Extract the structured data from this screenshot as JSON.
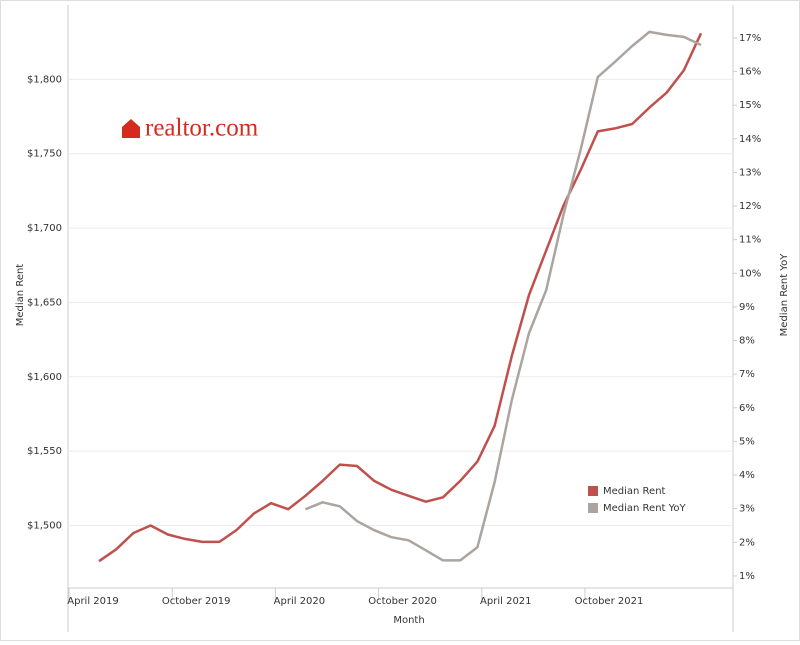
{
  "logo": "realtor.com",
  "chart_data": {
    "type": "line",
    "x_label": "Month",
    "y_label": "Median Rent",
    "y2_label": "Median Rent YoY",
    "categories": [
      "April 2019",
      null,
      null,
      null,
      null,
      null,
      "October 2019",
      null,
      null,
      null,
      null,
      null,
      "April 2020",
      null,
      null,
      null,
      null,
      null,
      "October 2020",
      null,
      null,
      null,
      null,
      null,
      "April 2021",
      null,
      null,
      null,
      null,
      null,
      "October 2021",
      null,
      null,
      null,
      null,
      null
    ],
    "series": [
      {
        "name": "Median Rent",
        "color": "#c0504d",
        "axis": "y",
        "values": [
          1476,
          1484,
          1495,
          1500,
          1494,
          1491,
          1489,
          1489,
          1497,
          1508,
          1515,
          1511,
          1520,
          1530,
          1541,
          1540,
          1530,
          1524,
          1520,
          1516,
          1519,
          1530,
          1543,
          1567,
          1614,
          1655,
          1685,
          1715,
          1739,
          1765,
          1767,
          1770,
          1781,
          1791,
          1806,
          1831
        ]
      },
      {
        "name": "Median Rent YoY",
        "color": "#aba49f",
        "axis": "y2",
        "values": [
          null,
          null,
          null,
          null,
          null,
          null,
          null,
          null,
          null,
          null,
          null,
          null,
          2.98,
          3.19,
          3.07,
          2.63,
          2.36,
          2.15,
          2.06,
          1.76,
          1.46,
          1.46,
          1.85,
          3.79,
          6.23,
          8.22,
          9.5,
          11.73,
          13.67,
          15.84,
          16.29,
          16.76,
          17.18,
          17.09,
          17.03,
          16.79
        ]
      }
    ],
    "ylim": [
      1458,
      1850
    ],
    "yticks": [
      {
        "value": 1500,
        "label": "$1,500"
      },
      {
        "value": 1550,
        "label": "$1,550"
      },
      {
        "value": 1600,
        "label": "$1,600"
      },
      {
        "value": 1650,
        "label": "$1,650"
      },
      {
        "value": 1700,
        "label": "$1,700"
      },
      {
        "value": 1750,
        "label": "$1,750"
      },
      {
        "value": 1800,
        "label": "$1,800"
      }
    ],
    "y2lim": [
      0.64,
      17.98
    ],
    "y2ticks": [
      {
        "value": 1,
        "label": "1%"
      },
      {
        "value": 2,
        "label": "2%"
      },
      {
        "value": 3,
        "label": "3%"
      },
      {
        "value": 4,
        "label": "4%"
      },
      {
        "value": 5,
        "label": "5%"
      },
      {
        "value": 6,
        "label": "6%"
      },
      {
        "value": 7,
        "label": "7%"
      },
      {
        "value": 8,
        "label": "8%"
      },
      {
        "value": 9,
        "label": "9%"
      },
      {
        "value": 10,
        "label": "10%"
      },
      {
        "value": 11,
        "label": "11%"
      },
      {
        "value": 12,
        "label": "12%"
      },
      {
        "value": 13,
        "label": "13%"
      },
      {
        "value": 14,
        "label": "14%"
      },
      {
        "value": 15,
        "label": "15%"
      },
      {
        "value": 16,
        "label": "16%"
      },
      {
        "value": 17,
        "label": "17%"
      }
    ],
    "grid": true
  }
}
